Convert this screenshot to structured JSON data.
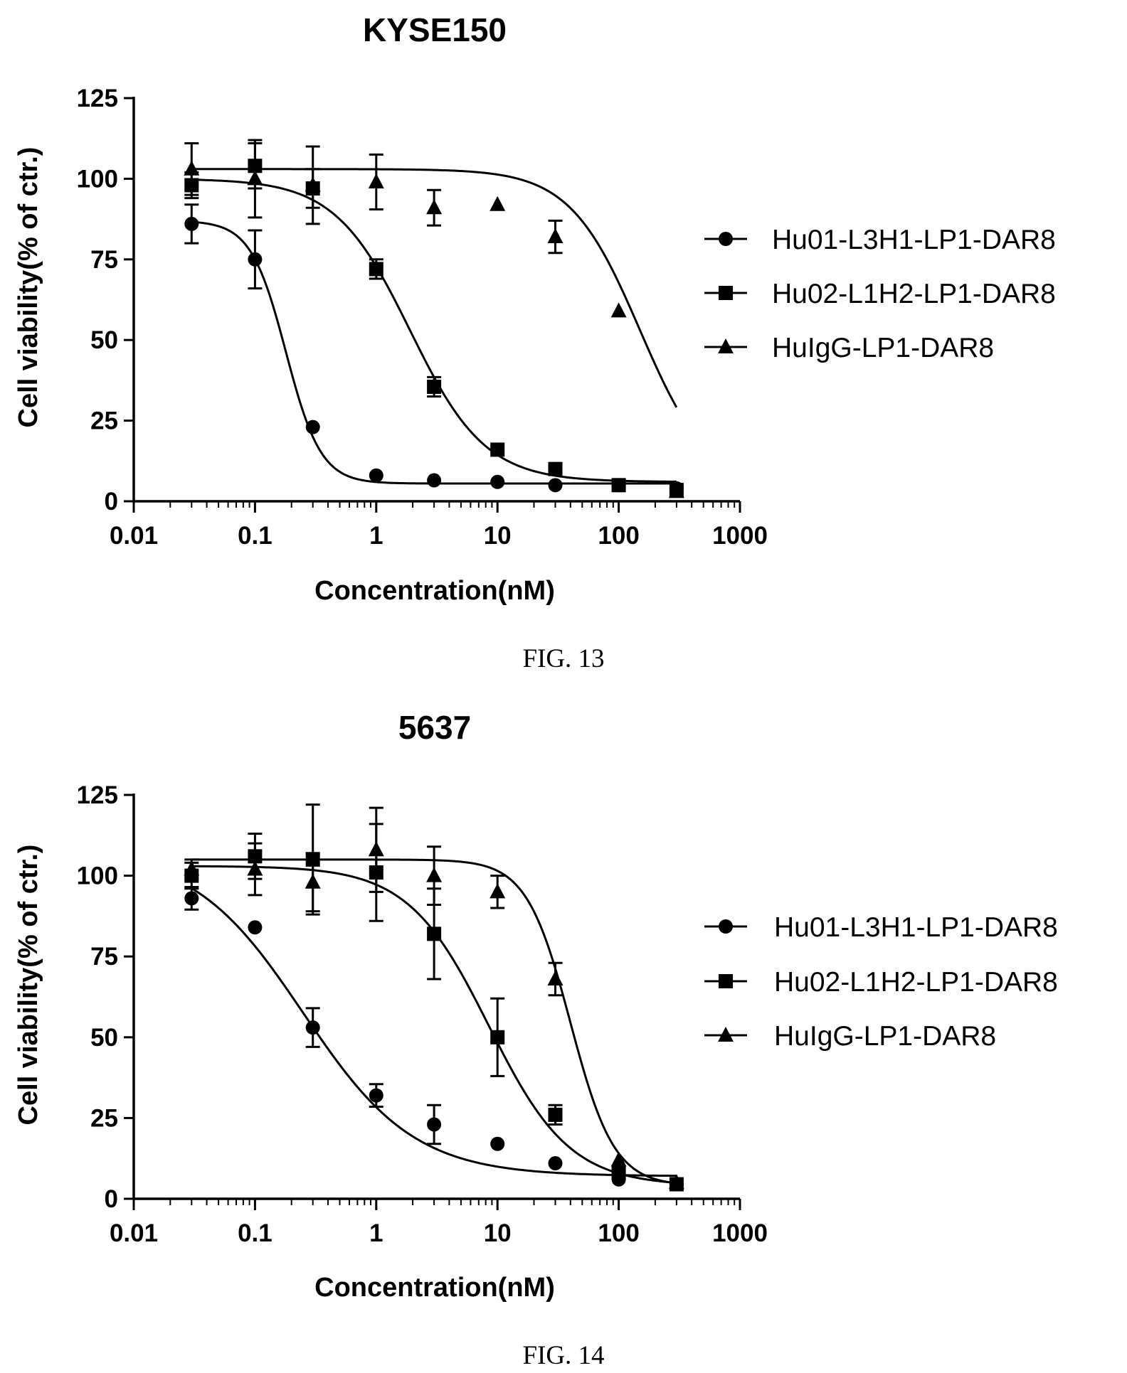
{
  "chart_data": [
    {
      "type": "line",
      "title": "KYSE150",
      "caption": "FIG. 13",
      "xlabel": "Concentration(nM)",
      "ylabel": "Cell viability(% of ctr.)",
      "x_scale": "log",
      "xlim": [
        0.01,
        1000
      ],
      "ylim": [
        0,
        125
      ],
      "x_ticks": [
        0.01,
        0.1,
        1,
        10,
        100,
        1000
      ],
      "x_tick_labels": [
        "0.01",
        "0.1",
        "1",
        "10",
        "100",
        "1000"
      ],
      "y_ticks": [
        0,
        25,
        50,
        75,
        100,
        125
      ],
      "y_tick_labels": [
        "0",
        "25",
        "50",
        "75",
        "100",
        "125"
      ],
      "grid": false,
      "legend_position": "right",
      "x": [
        0.03,
        0.1,
        0.3,
        1,
        3,
        10,
        30,
        100,
        300
      ],
      "series": [
        {
          "name": "Hu01-L3H1-LP1-DAR8",
          "marker": "circle",
          "values": [
            86,
            75,
            23,
            8,
            6.5,
            6,
            5,
            5,
            4
          ],
          "errors": [
            6,
            9,
            0,
            0,
            0,
            0,
            0,
            0,
            0
          ],
          "fit": {
            "top": 87,
            "bottom": 5.5,
            "ec50": 0.18,
            "hill": 3
          }
        },
        {
          "name": "Hu02-L1H2-LP1-DAR8",
          "marker": "square",
          "values": [
            98,
            104,
            97,
            72,
            35.5,
            16,
            10,
            5,
            3.5
          ],
          "errors": [
            4,
            7,
            6,
            3,
            3,
            0,
            0,
            0,
            0
          ],
          "fit": {
            "top": 100,
            "bottom": 6,
            "ec50": 1.9,
            "hill": 1.4
          }
        },
        {
          "name": "HuIgG-LP1-DAR8",
          "marker": "triangle",
          "values": [
            103,
            100,
            98,
            99,
            91,
            92,
            82,
            59,
            3
          ],
          "errors": [
            8,
            12,
            12,
            8.5,
            5.5,
            0,
            5,
            0,
            0
          ],
          "fit": {
            "top": 103,
            "bottom": 3,
            "ec50": 150,
            "hill": 1.5
          }
        }
      ]
    },
    {
      "type": "line",
      "title": "5637",
      "caption": "FIG. 14",
      "xlabel": "Concentration(nM)",
      "ylabel": "Cell viability(% of ctr.)",
      "x_scale": "log",
      "xlim": [
        0.01,
        1000
      ],
      "ylim": [
        0,
        125
      ],
      "x_ticks": [
        0.01,
        0.1,
        1,
        10,
        100,
        1000
      ],
      "x_tick_labels": [
        "0.01",
        "0.1",
        "1",
        "10",
        "100",
        "1000"
      ],
      "y_ticks": [
        0,
        25,
        50,
        75,
        100,
        125
      ],
      "y_tick_labels": [
        "0",
        "25",
        "50",
        "75",
        "100",
        "125"
      ],
      "grid": false,
      "legend_position": "right",
      "x": [
        0.03,
        0.1,
        0.3,
        1,
        3,
        10,
        30,
        100,
        300
      ],
      "series": [
        {
          "name": "Hu01-L3H1-LP1-DAR8",
          "marker": "circle",
          "values": [
            93,
            84,
            53,
            32,
            23,
            17,
            11,
            6,
            4.5
          ],
          "errors": [
            3.5,
            0,
            6,
            3.5,
            6,
            0,
            0,
            0,
            0
          ],
          "fit": {
            "top": 108,
            "bottom": 7,
            "ec50": 0.25,
            "hill": 0.95
          }
        },
        {
          "name": "Hu02-L1H2-LP1-DAR8",
          "marker": "square",
          "values": [
            100,
            106,
            105,
            101,
            82,
            50,
            26,
            8,
            4.5
          ],
          "errors": [
            4,
            7,
            17,
            15,
            14,
            12,
            3,
            0,
            0
          ],
          "fit": {
            "top": 103,
            "bottom": 4,
            "ec50": 8.5,
            "hill": 1.3
          }
        },
        {
          "name": "HuIgG-LP1-DAR8",
          "marker": "triangle",
          "values": [
            102,
            102,
            98,
            108,
            100,
            95,
            68,
            12,
            5
          ],
          "errors": [
            3,
            8,
            9,
            13,
            9,
            5,
            5,
            0,
            0
          ],
          "fit": {
            "top": 105,
            "bottom": 4,
            "ec50": 40,
            "hill": 2.4
          }
        }
      ]
    }
  ]
}
